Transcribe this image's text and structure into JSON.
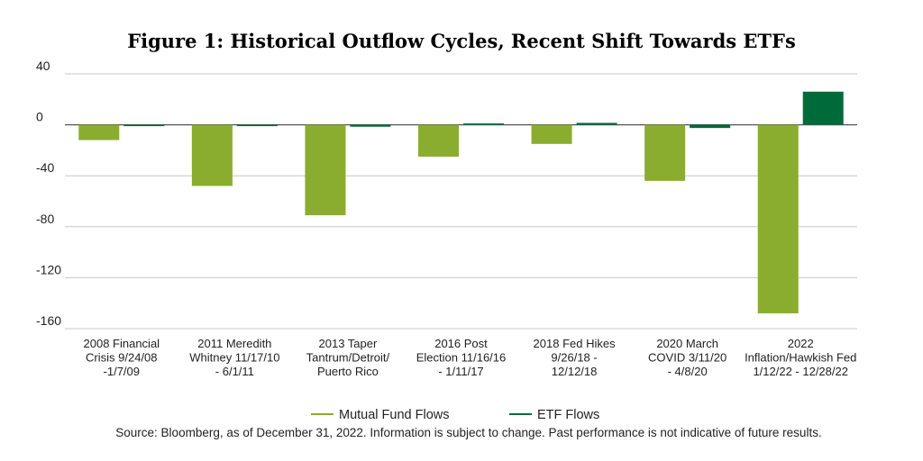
{
  "chart_data": {
    "type": "bar",
    "title": "Figure 1: Historical Outflow Cycles, Recent Shift Towards ETFs",
    "xlabel": "",
    "ylabel": "",
    "ylim": [
      -160,
      40
    ],
    "yticks": [
      "40",
      "0",
      "-40",
      "-80",
      "-120",
      "-160"
    ],
    "grid": true,
    "legend_position": "bottom-center",
    "categories": [
      [
        "2008 Financial",
        "Crisis 9/24/08",
        "-1/7/09"
      ],
      [
        "2011 Meredith",
        "Whitney 11/17/10",
        "- 6/1/11"
      ],
      [
        "2013 Taper",
        "Tantrum/Detroit/",
        "Puerto Rico"
      ],
      [
        "2016 Post",
        "Election 11/16/16",
        "- 1/11/17"
      ],
      [
        "2018 Fed Hikes",
        "9/26/18 -",
        "12/12/18"
      ],
      [
        "2020 March",
        "COVID 3/11/20",
        "- 4/8/20"
      ],
      [
        "2022",
        "Inflation/Hawkish Fed",
        "1/12/22 - 12/28/22"
      ]
    ],
    "series": [
      {
        "name": "Mutual Fund Flows",
        "color": "#8aad2f",
        "values": [
          -12,
          -48,
          -71,
          -25,
          -15,
          -44,
          -148
        ]
      },
      {
        "name": "ETF Flows",
        "color": "#006b3a",
        "values": [
          -1,
          -0.5,
          -1.5,
          1,
          1.5,
          -2.5,
          26
        ]
      }
    ],
    "source_note": "Source: Bloomberg, as of December 31, 2022. Information is subject to change. Past performance is not indicative of future results."
  }
}
